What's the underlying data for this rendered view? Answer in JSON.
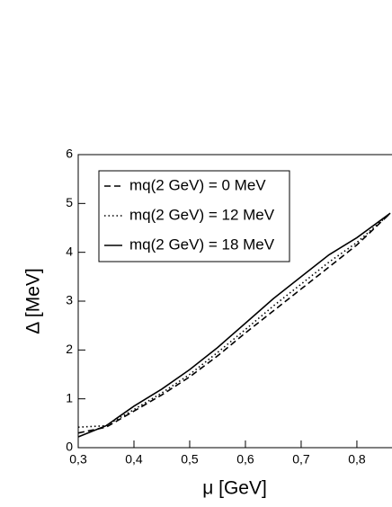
{
  "chart_data": {
    "type": "line",
    "xlabel": "μ [GeV]",
    "ylabel": "Δ [MeV]",
    "x": [
      0.3,
      0.35,
      0.4,
      0.45,
      0.5,
      0.55,
      0.6,
      0.65,
      0.7,
      0.75,
      0.8,
      0.86
    ],
    "series": [
      {
        "name": "mq(2 GeV) = 0 MeV",
        "color": "#000000",
        "dash": "dashed",
        "values": [
          0.3,
          0.42,
          0.75,
          1.08,
          1.45,
          1.88,
          2.35,
          2.8,
          3.25,
          3.7,
          4.15,
          4.8
        ]
      },
      {
        "name": "mq(2 GeV) = 12 MeV",
        "color": "#000000",
        "dash": "dotted",
        "values": [
          0.42,
          0.45,
          0.78,
          1.12,
          1.5,
          1.95,
          2.42,
          2.9,
          3.35,
          3.8,
          4.2,
          4.8
        ]
      },
      {
        "name": "mq(2 GeV) = 18 MeV",
        "color": "#000000",
        "dash": "solid",
        "values": [
          0.22,
          0.45,
          0.85,
          1.2,
          1.6,
          2.05,
          2.55,
          3.05,
          3.5,
          3.95,
          4.3,
          4.8
        ]
      }
    ],
    "xlim": [
      0.3,
      0.863
    ],
    "ylim": [
      0,
      6
    ],
    "xticks": [
      {
        "value": 0.3,
        "label": "0,3"
      },
      {
        "value": 0.4,
        "label": "0,4"
      },
      {
        "value": 0.5,
        "label": "0,5"
      },
      {
        "value": 0.6,
        "label": "0,6"
      },
      {
        "value": 0.7,
        "label": "0,7"
      },
      {
        "value": 0.8,
        "label": "0,8"
      }
    ],
    "yticks": [
      0,
      1,
      2,
      3,
      4,
      5,
      6
    ],
    "legend": "upper-left"
  }
}
